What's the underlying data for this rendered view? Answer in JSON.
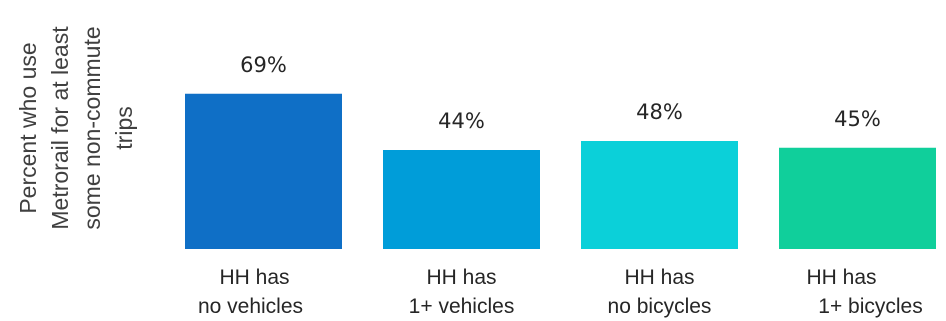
{
  "chart_data": {
    "type": "bar",
    "title": "",
    "xlabel": "",
    "ylabel": [
      "Percent who use",
      "Metrorail for at least",
      "some non-commute",
      "trips"
    ],
    "categories": [
      [
        "HH has",
        "no vehicles"
      ],
      [
        "HH has",
        "1+ vehicles"
      ],
      [
        "HH has",
        "no bicycles"
      ],
      [
        "HH has",
        "1+ bicycles"
      ]
    ],
    "values": [
      69,
      44,
      48,
      45
    ],
    "data_labels": [
      "69%",
      "44%",
      "48%",
      "45%"
    ],
    "unit": "%",
    "ylim": [
      0,
      100
    ],
    "grid": false,
    "legend": "none",
    "colors": [
      "#0f6fc6",
      "#009dd9",
      "#0bd0d9",
      "#10cf9b"
    ]
  }
}
